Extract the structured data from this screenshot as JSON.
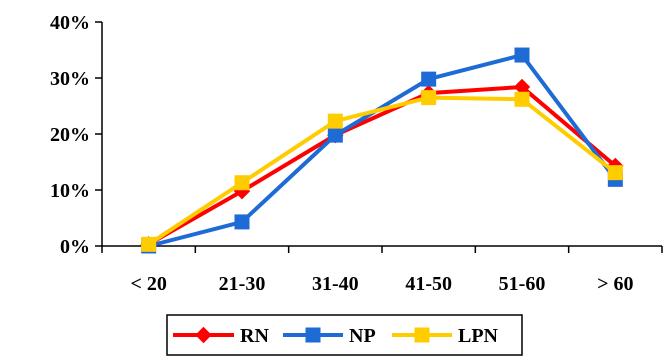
{
  "chart_data": {
    "type": "line",
    "categories": [
      "< 20",
      "21-30",
      "31-40",
      "41-50",
      "51-60",
      "> 60"
    ],
    "series": [
      {
        "name": "RN",
        "color": "#FF0000",
        "marker": "diamond",
        "values": [
          0.3,
          9.8,
          19.8,
          27.3,
          28.4,
          14.3
        ]
      },
      {
        "name": "NP",
        "color": "#1E6BD6",
        "marker": "square",
        "values": [
          0.0,
          4.3,
          19.8,
          29.8,
          34.1,
          11.9
        ]
      },
      {
        "name": "LPN",
        "color": "#FFCC00",
        "marker": "square",
        "values": [
          0.3,
          11.3,
          22.3,
          26.5,
          26.2,
          13.1
        ]
      }
    ],
    "y_ticks": [
      "0%",
      "10%",
      "20%",
      "30%",
      "40%"
    ],
    "y_tick_values": [
      0,
      10,
      20,
      30,
      40
    ],
    "ylim": [
      0,
      40
    ],
    "unit": "%",
    "grid": false,
    "legend_position": "bottom-center"
  }
}
